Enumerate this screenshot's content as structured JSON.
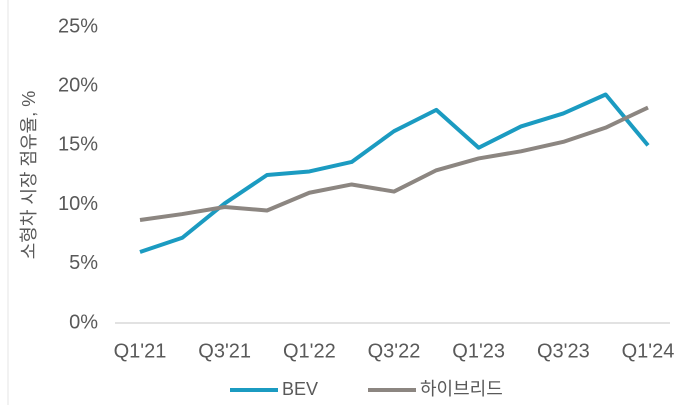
{
  "chart_data": {
    "type": "line",
    "y_axis_label": "소형차 시장 점유율, %",
    "categories": [
      "Q1'21",
      null,
      "Q3'21",
      null,
      "Q1'22",
      null,
      "Q3'22",
      null,
      "Q1'23",
      null,
      "Q3'23",
      null,
      "Q1'24"
    ],
    "series": [
      {
        "name": "BEV",
        "color": "#1b9bc1",
        "values": [
          6.0,
          7.2,
          10.1,
          12.5,
          12.8,
          13.6,
          16.2,
          18.0,
          14.8,
          16.6,
          17.7,
          19.3,
          15.0
        ]
      },
      {
        "name": "하이브리드",
        "color": "#8c8681",
        "values": [
          8.7,
          9.2,
          9.8,
          9.5,
          11.0,
          11.7,
          11.1,
          12.9,
          13.9,
          14.5,
          15.3,
          16.5,
          18.2
        ]
      }
    ],
    "ylim": [
      0,
      25
    ],
    "yticks": [
      {
        "value": 0,
        "label": "0%"
      },
      {
        "value": 5,
        "label": "5%"
      },
      {
        "value": 10,
        "label": "10%"
      },
      {
        "value": 15,
        "label": "15%"
      },
      {
        "value": 20,
        "label": "20%"
      },
      {
        "value": 25,
        "label": "25%"
      }
    ],
    "grid": false,
    "legend": "bottom"
  }
}
